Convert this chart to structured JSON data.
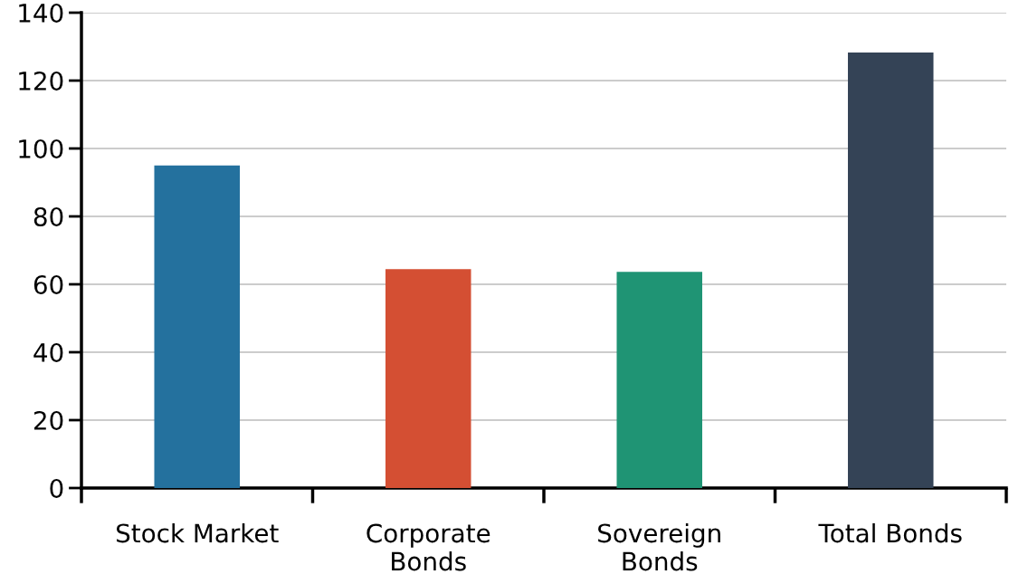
{
  "chart_data": {
    "type": "bar",
    "categories": [
      "Stock Market",
      "Corporate\nBonds",
      "Sovereign\nBonds",
      "Total Bonds"
    ],
    "values": [
      95,
      64.5,
      63.7,
      128.3
    ],
    "colors": [
      "#24719e",
      "#d44f33",
      "#1f9474",
      "#344356"
    ],
    "ylim": [
      0,
      140
    ],
    "yticks": [
      0,
      20,
      40,
      60,
      80,
      100,
      120,
      140
    ],
    "grid": "y",
    "legend": false
  }
}
